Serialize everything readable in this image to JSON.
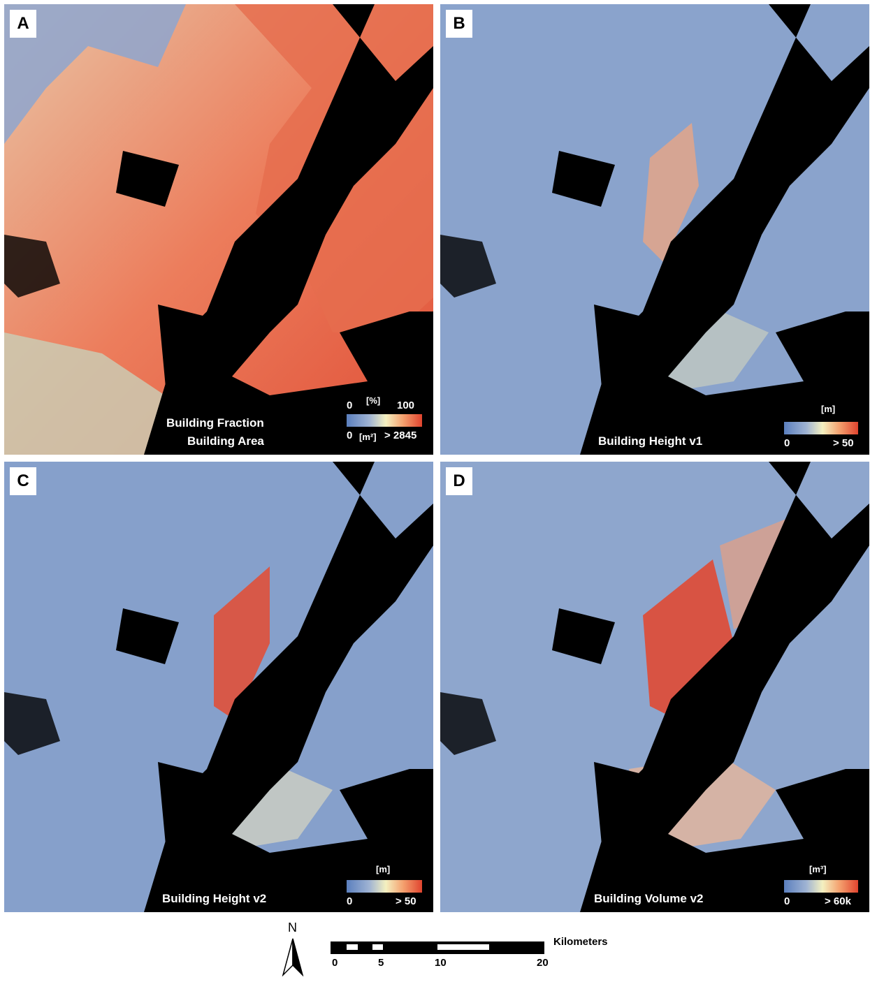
{
  "panels": [
    {
      "id": "A",
      "titles": [
        "Building Fraction",
        "Building Area"
      ],
      "legend": {
        "top_unit": "[%]",
        "top_min": "0",
        "top_max": "100",
        "bottom_unit": "[m²]",
        "bottom_min": "0",
        "bottom_max": "> 2845"
      }
    },
    {
      "id": "B",
      "titles": [
        "Building Height v1"
      ],
      "legend": {
        "unit": "[m]",
        "min": "0",
        "max": "> 50"
      }
    },
    {
      "id": "C",
      "titles": [
        "Building Height v2"
      ],
      "legend": {
        "unit": "[m]",
        "min": "0",
        "max": "> 50"
      }
    },
    {
      "id": "D",
      "titles": [
        "Building Volume v2"
      ],
      "legend": {
        "unit": "[m³]",
        "min": "0",
        "max": "> 60k"
      }
    }
  ],
  "colors": {
    "low": "#5b7fbe",
    "mid": "#f4f0c0",
    "high": "#e0442f",
    "water": "#000000"
  },
  "north_label": "N",
  "scale_bar": {
    "unit": "Kilometers",
    "ticks": [
      "0",
      "5",
      "10",
      "20"
    ]
  }
}
